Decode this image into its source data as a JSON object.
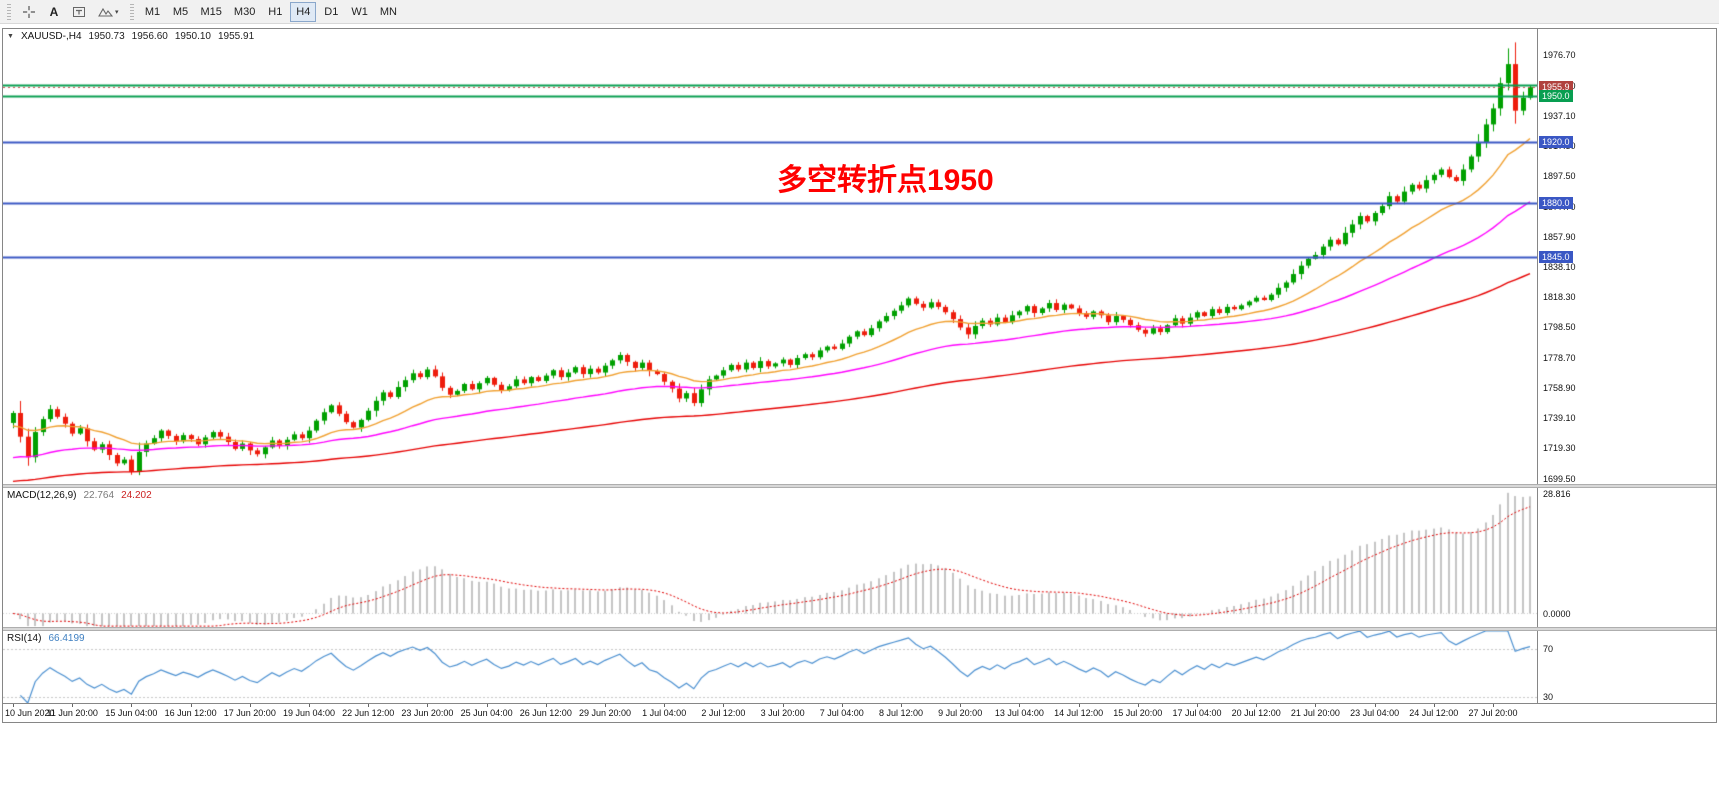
{
  "toolbar": {
    "tools": {
      "text_label": "A",
      "shapes_caret": "▾"
    },
    "timeframes": [
      "M1",
      "M5",
      "M15",
      "M30",
      "H1",
      "H4",
      "D1",
      "W1",
      "MN"
    ],
    "active_timeframe": "H4"
  },
  "chart": {
    "collapse_icon": "▼",
    "symbol_label": "XAUUSD-,H4",
    "ohlc": {
      "open": "1950.73",
      "high": "1956.60",
      "low": "1950.10",
      "close": "1955.91"
    },
    "annotation_text": "多空转折点1950"
  },
  "price_axis": {
    "badges": [
      {
        "label": "1955.9",
        "price": 1955.91,
        "bg": "#b0413e"
      },
      {
        "label": "1950.0",
        "price": 1950.0,
        "bg": "#089e51"
      },
      {
        "label": "1920.0",
        "price": 1920.0,
        "bg": "#3a57c4"
      },
      {
        "label": "1880.0",
        "price": 1880.0,
        "bg": "#3a57c4"
      },
      {
        "label": "1845.0",
        "price": 1845.0,
        "bg": "#3a57c4"
      }
    ]
  },
  "macd_panel": {
    "title": "MACD(12,26,9)",
    "value_main": "22.764",
    "value_signal": "24.202"
  },
  "rsi_panel": {
    "title": "RSI(14)",
    "value": "66.4199"
  },
  "time_axis": {
    "labels": [
      "10 Jun 2020",
      "11 Jun 20:00",
      "15 Jun 04:00",
      "16 Jun 12:00",
      "17 Jun 20:00",
      "19 Jun 04:00",
      "22 Jun 12:00",
      "23 Jun 20:00",
      "25 Jun 04:00",
      "26 Jun 12:00",
      "29 Jun 20:00",
      "1 Jul 04:00",
      "2 Jul 12:00",
      "3 Jul 20:00",
      "7 Jul 04:00",
      "8 Jul 12:00",
      "9 Jul 20:00",
      "13 Jul 04:00",
      "14 Jul 12:00",
      "15 Jul 20:00",
      "17 Jul 04:00",
      "20 Jul 12:00",
      "21 Jul 20:00",
      "23 Jul 04:00",
      "24 Jul 12:00",
      "27 Jul 20:00"
    ]
  },
  "colors": {
    "bull": "#00a000",
    "bear": "#ee1c0c",
    "ma_fast": "#f0a030",
    "ma_mid": "#ff00ff",
    "ma_slow": "#e60000",
    "macd_hist": "#c4c4c4",
    "macd_signal": "#e00000",
    "rsi_line": "#4a8fd0",
    "bid_line": "#cc5555",
    "level_dash": "#c6c6c6"
  },
  "chart_data": {
    "type": "candlestick",
    "title": "XAUUSD-,H4",
    "symbol": "XAUUSD-",
    "timeframe": "H4",
    "ylim": [
      1696.0,
      1994.0
    ],
    "price_axis_ticks": [
      1699.5,
      1719.3,
      1739.1,
      1758.9,
      1778.7,
      1798.5,
      1818.3,
      1838.1,
      1857.9,
      1877.7,
      1897.5,
      1917.3,
      1937.1,
      1956.9,
      1976.7
    ],
    "current_price": 1955.91,
    "x_labels_every_n_bars": 8,
    "closes": [
      1736.0,
      1742.5,
      1727.0,
      1713.5,
      1730.0,
      1738.5,
      1745.0,
      1740.0,
      1735.5,
      1729.0,
      1732.5,
      1724.0,
      1718.5,
      1722.0,
      1715.0,
      1709.5,
      1712.0,
      1704.0,
      1717.0,
      1722.5,
      1726.0,
      1731.0,
      1727.5,
      1724.0,
      1728.0,
      1725.5,
      1722.0,
      1726.5,
      1730.0,
      1727.0,
      1723.5,
      1719.0,
      1722.5,
      1718.0,
      1715.5,
      1720.0,
      1724.5,
      1721.0,
      1725.0,
      1728.5,
      1726.0,
      1731.0,
      1737.5,
      1743.0,
      1747.5,
      1742.0,
      1736.5,
      1733.0,
      1738.0,
      1744.0,
      1750.5,
      1756.0,
      1753.0,
      1759.5,
      1764.0,
      1768.5,
      1766.0,
      1771.0,
      1766.5,
      1759.0,
      1754.5,
      1757.0,
      1761.5,
      1758.0,
      1762.0,
      1765.5,
      1761.0,
      1757.5,
      1760.0,
      1764.5,
      1762.0,
      1766.0,
      1763.5,
      1767.0,
      1770.5,
      1766.0,
      1769.0,
      1772.5,
      1768.0,
      1771.5,
      1769.0,
      1773.5,
      1777.0,
      1780.5,
      1776.0,
      1772.0,
      1775.5,
      1770.0,
      1768.0,
      1763.0,
      1758.5,
      1752.0,
      1755.5,
      1749.0,
      1758.0,
      1764.5,
      1767.0,
      1770.5,
      1774.0,
      1771.0,
      1775.5,
      1772.0,
      1776.5,
      1773.0,
      1775.0,
      1777.5,
      1774.0,
      1778.5,
      1781.0,
      1779.0,
      1783.5,
      1786.0,
      1784.5,
      1788.0,
      1792.5,
      1796.0,
      1793.5,
      1798.0,
      1802.5,
      1806.0,
      1809.5,
      1813.0,
      1817.5,
      1814.0,
      1811.5,
      1815.0,
      1812.0,
      1808.5,
      1804.0,
      1798.5,
      1794.0,
      1799.5,
      1803.0,
      1800.5,
      1805.0,
      1802.0,
      1806.5,
      1809.0,
      1812.5,
      1808.0,
      1811.0,
      1814.5,
      1810.0,
      1813.5,
      1811.0,
      1808.0,
      1805.5,
      1809.0,
      1806.5,
      1802.0,
      1806.0,
      1803.5,
      1800.0,
      1797.0,
      1794.5,
      1798.0,
      1795.5,
      1800.0,
      1804.5,
      1801.0,
      1805.0,
      1808.5,
      1806.0,
      1810.5,
      1808.0,
      1812.0,
      1810.5,
      1813.0,
      1815.5,
      1818.0,
      1816.5,
      1820.0,
      1824.5,
      1828.0,
      1833.5,
      1839.0,
      1843.5,
      1846.0,
      1851.5,
      1856.0,
      1853.0,
      1860.5,
      1866.0,
      1871.5,
      1868.0,
      1873.5,
      1878.0,
      1884.5,
      1881.0,
      1887.5,
      1892.0,
      1889.5,
      1895.0,
      1898.5,
      1902.0,
      1897.0,
      1894.5,
      1902.0,
      1910.5,
      1920.0,
      1931.5,
      1942.0,
      1958.5,
      1971.0,
      1940.5,
      1949.0,
      1955.9
    ],
    "wick_overrides": [
      {
        "index": 17,
        "low": 1701.8
      },
      {
        "index": 202,
        "high": 1981.3
      },
      {
        "index": 203,
        "low": 1932.0
      }
    ],
    "horizontal_levels": [
      {
        "price": 1957.0,
        "color": "#089e51",
        "width": 2
      },
      {
        "price": 1950.0,
        "color": "#089e51",
        "width": 2
      },
      {
        "price": 1920.0,
        "color": "#3a57c4",
        "width": 2
      },
      {
        "price": 1880.0,
        "color": "#3a57c4",
        "width": 2
      },
      {
        "price": 1845.0,
        "color": "#3a57c4",
        "width": 2
      }
    ],
    "indicators": {
      "macd": {
        "params": [
          12,
          26,
          9
        ],
        "axis_labels": [
          "28.816",
          "0.0000"
        ]
      },
      "rsi": {
        "params": [
          14
        ],
        "levels": [
          70,
          30
        ],
        "axis_labels": [
          "70",
          "30"
        ]
      }
    }
  }
}
